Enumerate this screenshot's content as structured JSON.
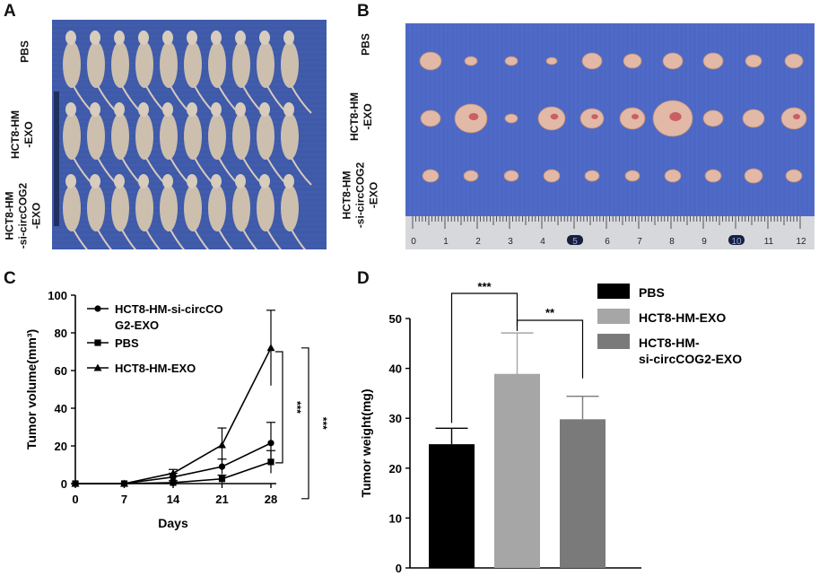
{
  "panels": {
    "A": {
      "letter": "A",
      "row_labels": [
        "PBS",
        "HCT8-HM\n-EXO",
        "HCT8-HM\n-si-circCOG2\n-EXO"
      ],
      "mice_per_row": 10,
      "colors": {
        "background": "#3e5aa8",
        "mouse": "#cdbfae"
      }
    },
    "B": {
      "letter": "B",
      "row_labels": [
        "PBS",
        "HCT8-HM\n-EXO",
        "HCT8-HM\n-si-circCOG2\n-EXO"
      ],
      "ruler_ticks": [
        "0",
        "1",
        "2",
        "3",
        "4",
        "5",
        "6",
        "7",
        "8",
        "9",
        "10",
        "11",
        "12"
      ],
      "colors": {
        "background": "#4d68c4",
        "tumor": "#e2b8a6"
      }
    },
    "C": {
      "letter": "C"
    },
    "D": {
      "letter": "D"
    }
  },
  "chart_data": [
    {
      "id": "C",
      "type": "line",
      "x": [
        0,
        7,
        14,
        21,
        28
      ],
      "xlabel": "Days",
      "ylabel": "Tumor volume(mm³)",
      "ylim": [
        0,
        100
      ],
      "yticks": [
        0,
        20,
        40,
        60,
        80,
        100
      ],
      "series": [
        {
          "name": "HCT8-HM-si-circCOG2-EXO",
          "legend_lines": [
            "HCT8-HM-si-circCO",
            "G2-EXO"
          ],
          "marker": "circle",
          "values": [
            0,
            0,
            3.5,
            9,
            21.5
          ],
          "errors": [
            0,
            0,
            2,
            4,
            11
          ]
        },
        {
          "name": "PBS",
          "legend_lines": [
            "PBS"
          ],
          "marker": "square",
          "values": [
            0,
            0,
            0.5,
            2.5,
            11.5
          ],
          "errors": [
            0,
            0,
            1,
            2,
            6
          ]
        },
        {
          "name": "HCT8-HM-EXO",
          "legend_lines": [
            "HCT8-HM-EXO"
          ],
          "marker": "triangle",
          "values": [
            0,
            0,
            5.5,
            20.5,
            72
          ],
          "errors": [
            0,
            0,
            2,
            9,
            20
          ]
        }
      ],
      "significance": [
        "***",
        "***"
      ]
    },
    {
      "id": "D",
      "type": "bar",
      "ylabel": "Tumor weight(mg)",
      "ylim": [
        0,
        50
      ],
      "yticks": [
        0,
        10,
        20,
        30,
        40,
        50
      ],
      "series": [
        {
          "name": "PBS",
          "legend_lines": [
            "PBS"
          ],
          "value": 24.8,
          "error": 3.2,
          "color": "#000000"
        },
        {
          "name": "HCT8-HM-EXO",
          "legend_lines": [
            "HCT8-HM-EXO"
          ],
          "value": 38.9,
          "error": 8.2,
          "color": "#a6a6a6"
        },
        {
          "name": "HCT8-HM-si-circCOG2-EXO",
          "legend_lines": [
            "HCT8-HM-",
            "si-circCOG2-EXO"
          ],
          "value": 29.8,
          "error": 4.6,
          "color": "#7a7a7a"
        }
      ],
      "significance": [
        "***",
        "**"
      ]
    }
  ]
}
